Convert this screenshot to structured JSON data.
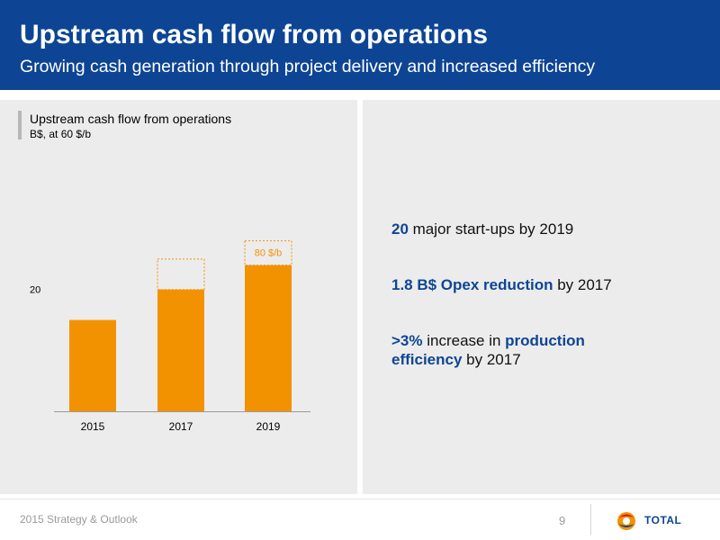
{
  "header": {
    "title": "Upstream cash flow from operations",
    "subtitle": "Growing cash generation through project delivery and increased efficiency"
  },
  "chart_data": {
    "type": "bar",
    "title": "Upstream cash flow from operations",
    "unit": "B$, at 60 $/b",
    "categories": [
      "2015",
      "2017",
      "2019"
    ],
    "values": [
      15,
      20,
      24
    ],
    "extra_values": [
      0,
      5,
      4
    ],
    "extra_label": "80 $/b",
    "ytick_label": "20",
    "ytick_value": 20,
    "ylim": [
      0,
      34
    ],
    "bar_color": "#f39200"
  },
  "bullets": {
    "b1_bold": "20",
    "b1_text": " major start-ups by 2019",
    "b2_bold": "1.8 B$ Opex reduction",
    "b2_text": " by 2017",
    "b3_bold": ">3%",
    "b3_text_mid": " increase in ",
    "b3_bold2": "production efficiency",
    "b3_text_end": " by 2017"
  },
  "footer": {
    "left_text": "2015 Strategy & Outlook",
    "page": "9",
    "logo_text": "TOTAL"
  },
  "colors": {
    "brand_blue": "#0d4594",
    "orange": "#f39200",
    "panel_gray": "#ececec"
  }
}
